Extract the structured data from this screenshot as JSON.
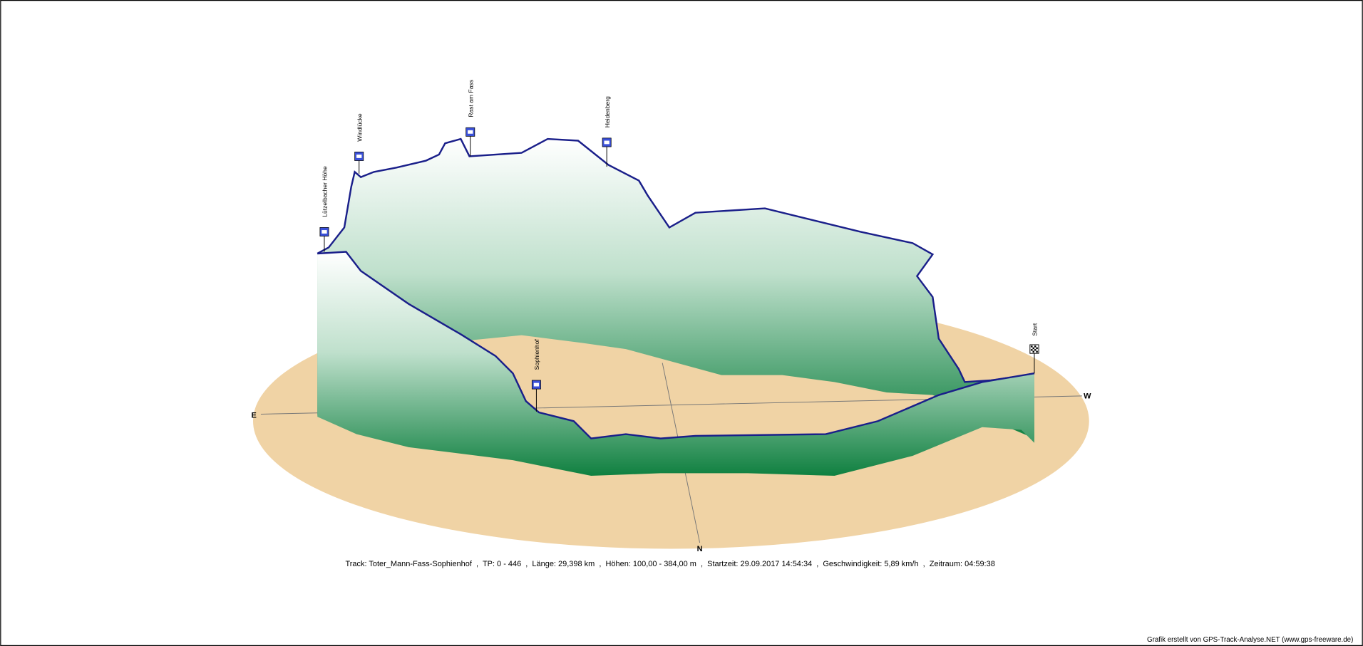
{
  "waypoints": [
    {
      "label": "Lützelbacher Höhe"
    },
    {
      "label": "Windlücke"
    },
    {
      "label": "Rast am Fass"
    },
    {
      "label": "Heidenberg"
    },
    {
      "label": "Sophienhof"
    },
    {
      "label": "Start"
    }
  ],
  "compass": {
    "east": "E",
    "west": "W",
    "north": "N"
  },
  "track_info": "Track: Toter_Mann-Fass-Sophienhof  ,  TP: 0 - 446  ,  Länge: 29,398 km  ,  Höhen: 100,00 - 384,00 m  ,  Startzeit: 29.09.2017 14:54:34  ,  Geschwindigkeit: 5,89 km/h  ,  Zeitraum: 04:59:38",
  "credit": "Grafik erstellt von GPS-Track-Analyse.NET (www.gps-freeware.de)"
}
